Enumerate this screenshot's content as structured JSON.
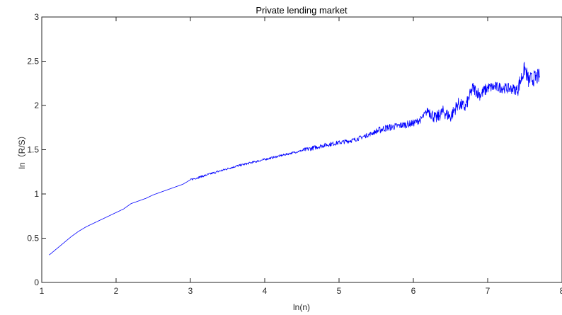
{
  "chart_data": {
    "type": "line",
    "title": "Private lending market",
    "xlabel": "ln(n)",
    "ylabel": "ln（R/S）",
    "xlim": [
      1,
      8
    ],
    "ylim": [
      0,
      3
    ],
    "xticks": [
      "1",
      "2",
      "3",
      "4",
      "5",
      "6",
      "7",
      "8"
    ],
    "yticks": [
      "0",
      "0.5",
      "1",
      "1.5",
      "2",
      "2.5",
      "3"
    ],
    "grid": false,
    "line_color": "#0000ff",
    "series": [
      {
        "x": [
          1.1,
          1.2,
          1.3,
          1.4,
          1.5,
          1.6,
          1.7,
          1.8,
          1.9,
          2.0,
          2.1,
          2.2,
          2.3,
          2.4,
          2.5,
          2.6,
          2.7,
          2.8,
          2.9,
          3.0,
          3.2,
          3.4,
          3.6,
          3.8,
          4.0,
          4.2,
          4.4,
          4.6,
          4.8,
          5.0,
          5.2,
          5.4,
          5.6,
          5.8,
          6.0,
          6.1,
          6.2,
          6.3,
          6.4,
          6.5,
          6.6,
          6.7,
          6.8,
          6.9,
          7.0,
          7.1,
          7.2,
          7.3,
          7.4,
          7.5,
          7.55,
          7.6,
          7.7
        ],
        "y": [
          0.31,
          0.38,
          0.45,
          0.52,
          0.58,
          0.63,
          0.67,
          0.71,
          0.75,
          0.79,
          0.83,
          0.89,
          0.92,
          0.95,
          0.99,
          1.02,
          1.05,
          1.08,
          1.11,
          1.16,
          1.21,
          1.26,
          1.31,
          1.35,
          1.39,
          1.43,
          1.47,
          1.51,
          1.55,
          1.58,
          1.61,
          1.67,
          1.74,
          1.77,
          1.8,
          1.84,
          1.95,
          1.85,
          1.93,
          1.87,
          2.02,
          1.98,
          2.2,
          2.12,
          2.2,
          2.21,
          2.2,
          2.19,
          2.18,
          2.42,
          2.28,
          2.3,
          2.33
        ]
      }
    ]
  }
}
